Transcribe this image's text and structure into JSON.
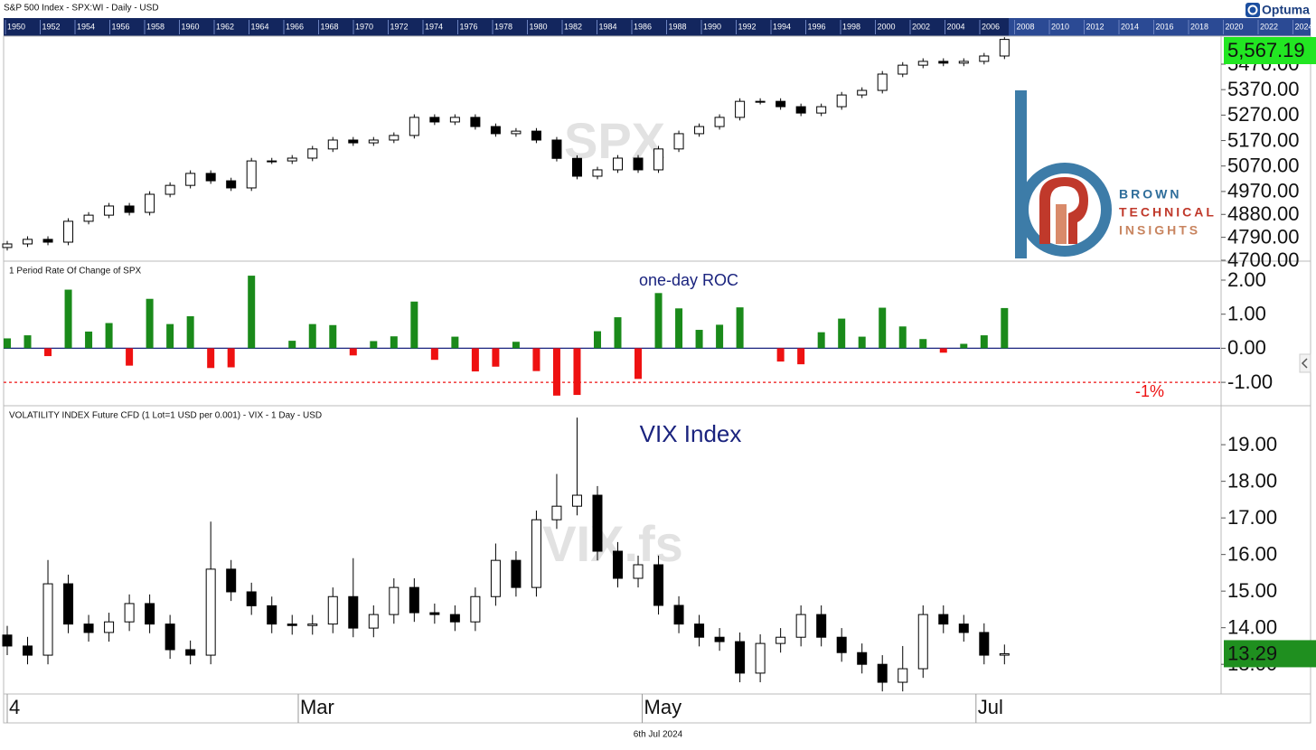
{
  "header": "S&P 500 Index - SPX:WI - Daily - USD",
  "brand": "Optuma",
  "timeline_years": [
    "1950",
    "1952",
    "1954",
    "1956",
    "1958",
    "1960",
    "1962",
    "1964",
    "1966",
    "1968",
    "1970",
    "1972",
    "1974",
    "1976",
    "1978",
    "1980",
    "1982",
    "1984",
    "1986",
    "1988",
    "1990",
    "1992",
    "1994",
    "1996",
    "1998",
    "2000",
    "2002",
    "2004",
    "2006",
    "2008",
    "2010",
    "2012",
    "2014",
    "2016",
    "2018",
    "2020",
    "2022",
    "2024"
  ],
  "x_axis": {
    "xlim": [
      0,
      59.6
    ],
    "xticks": [
      {
        "value": 0,
        "label": "4"
      },
      {
        "value": 14.3,
        "label": "Mar"
      },
      {
        "value": 31.2,
        "label": "May"
      },
      {
        "value": 47.6,
        "label": "Jul"
      }
    ]
  },
  "logo": {
    "lines": [
      "BROWN",
      "TECHNICAL",
      "INSIGHTS"
    ]
  },
  "footer": "6th Jul 2024",
  "chart_data": [
    {
      "type": "candlestick",
      "watermark": "SPX",
      "open": [
        4750,
        4764,
        4782,
        4771,
        4853,
        4877,
        4913,
        4888,
        4959,
        4994,
        5041,
        5012,
        4984,
        5090,
        5090,
        5101,
        5137,
        5172,
        5161,
        5172,
        5190,
        5261,
        5243,
        5261,
        5225,
        5197,
        5207,
        5172,
        5100,
        5030,
        5055,
        5101,
        5055,
        5137,
        5197,
        5225,
        5261,
        5324,
        5324,
        5303,
        5278,
        5303,
        5349,
        5367,
        5431,
        5466,
        5481,
        5474,
        5481,
        5502
      ],
      "high": [
        4776,
        4794,
        4794,
        4865,
        4889,
        4925,
        4925,
        4971,
        5006,
        5053,
        5053,
        5024,
        5102,
        5102,
        5113,
        5149,
        5184,
        5184,
        5184,
        5202,
        5273,
        5273,
        5273,
        5273,
        5237,
        5219,
        5219,
        5184,
        5112,
        5067,
        5113,
        5113,
        5149,
        5209,
        5237,
        5273,
        5336,
        5336,
        5336,
        5315,
        5315,
        5361,
        5379,
        5443,
        5478,
        5493,
        5493,
        5493,
        5514,
        5576
      ],
      "low": [
        4738,
        4752,
        4759,
        4759,
        4841,
        4865,
        4876,
        4876,
        4947,
        4982,
        5000,
        4972,
        4972,
        5078,
        5078,
        5089,
        5125,
        5149,
        5149,
        5160,
        5178,
        5231,
        5231,
        5213,
        5185,
        5185,
        5160,
        5088,
        5018,
        5018,
        5043,
        5043,
        5043,
        5125,
        5185,
        5213,
        5249,
        5312,
        5291,
        5266,
        5266,
        5291,
        5337,
        5355,
        5419,
        5454,
        5462,
        5462,
        5469,
        5490
      ],
      "close": [
        4764,
        4782,
        4771,
        4853,
        4877,
        4913,
        4888,
        4959,
        4994,
        5041,
        5012,
        4984,
        5090,
        5090,
        5101,
        5137,
        5172,
        5161,
        5172,
        5190,
        5261,
        5243,
        5261,
        5225,
        5197,
        5207,
        5172,
        5100,
        5030,
        5055,
        5101,
        5055,
        5137,
        5197,
        5225,
        5261,
        5324,
        5324,
        5303,
        5278,
        5303,
        5349,
        5367,
        5431,
        5466,
        5481,
        5474,
        5481,
        5502,
        5567.19
      ],
      "last_value_label": "5,567.19",
      "ylim": [
        4700,
        5580
      ],
      "yticks": [
        {
          "value": 4700,
          "label": "4700.00"
        },
        {
          "value": 4790,
          "label": "4790.00"
        },
        {
          "value": 4880,
          "label": "4880.00"
        },
        {
          "value": 4970,
          "label": "4970.00"
        },
        {
          "value": 5070,
          "label": "5070.00"
        },
        {
          "value": 5170,
          "label": "5170.00"
        },
        {
          "value": 5270,
          "label": "5270.00"
        },
        {
          "value": 5370,
          "label": "5370.00"
        },
        {
          "value": 5470,
          "label": "5470.00"
        }
      ],
      "up_color": "#ffffff",
      "down_color": "#000000",
      "label_color": "#22e622",
      "label_text_color": "#000000"
    },
    {
      "type": "bar",
      "panel_label": "1 Period Rate Of Change of SPX",
      "title": "one-day ROC",
      "values": [
        0.29,
        0.38,
        -0.23,
        1.72,
        0.49,
        0.74,
        -0.51,
        1.45,
        0.71,
        0.94,
        -0.58,
        -0.56,
        2.13,
        0.0,
        0.22,
        0.71,
        0.68,
        -0.21,
        0.21,
        0.35,
        1.37,
        -0.34,
        0.34,
        -0.68,
        -0.54,
        0.19,
        -0.67,
        -1.39,
        -1.37,
        0.5,
        0.91,
        -0.9,
        1.62,
        1.17,
        0.54,
        0.69,
        1.2,
        0.0,
        -0.39,
        -0.47,
        0.47,
        0.87,
        0.34,
        1.19,
        0.64,
        0.27,
        -0.13,
        0.13,
        0.38,
        1.18
      ],
      "ylim": [
        -1.66,
        2.53
      ],
      "yticks": [
        {
          "value": 2,
          "label": "2.00"
        },
        {
          "value": 1,
          "label": "1.00"
        },
        {
          "value": 0,
          "label": "0.00"
        },
        {
          "value": -1,
          "label": "-1.00"
        }
      ],
      "reference_line": {
        "value": -1,
        "label": "-1%"
      },
      "positive_color": "#1a8a1a",
      "negative_color": "#ee1111"
    },
    {
      "type": "candlestick",
      "panel_label": "VOLATILITY INDEX Future CFD  (1 Lot=1 USD per 0.001) - VIX - 1 Day - USD",
      "title": "VIX Index",
      "watermark": "VIX.fs",
      "open": [
        13.8,
        13.5,
        13.25,
        15.2,
        14.1,
        13.87,
        14.16,
        14.66,
        14.1,
        13.4,
        13.25,
        15.6,
        14.98,
        14.6,
        14.1,
        14.06,
        14.1,
        14.85,
        13.99,
        14.36,
        15.1,
        14.41,
        14.36,
        14.16,
        14.85,
        15.84,
        15.1,
        16.95,
        17.32,
        17.62,
        16.09,
        15.35,
        15.72,
        14.61,
        14.1,
        13.74,
        13.62,
        12.76,
        13.57,
        13.74,
        14.36,
        13.74,
        13.32,
        13.0,
        12.51,
        12.88,
        14.36,
        14.1,
        13.87,
        13.25
      ],
      "high": [
        14.05,
        13.75,
        15.85,
        15.45,
        14.35,
        14.41,
        14.91,
        14.91,
        14.35,
        13.65,
        16.9,
        15.85,
        15.23,
        14.85,
        14.35,
        14.35,
        15.1,
        15.9,
        14.61,
        15.35,
        15.35,
        14.66,
        14.61,
        15.1,
        16.3,
        16.09,
        17.2,
        18.2,
        19.74,
        17.87,
        16.34,
        15.97,
        15.97,
        14.86,
        14.35,
        13.99,
        13.87,
        13.82,
        13.99,
        14.61,
        14.61,
        13.99,
        13.57,
        13.25,
        13.5,
        14.61,
        14.61,
        14.35,
        14.12,
        13.54
      ],
      "low": [
        13.25,
        13.0,
        13.0,
        13.85,
        13.62,
        13.62,
        13.91,
        13.85,
        13.15,
        13.0,
        13.0,
        14.73,
        14.35,
        13.85,
        13.81,
        13.81,
        13.85,
        13.74,
        13.74,
        14.11,
        14.16,
        14.11,
        13.91,
        13.91,
        14.6,
        14.85,
        14.85,
        16.7,
        17.07,
        15.84,
        15.1,
        15.1,
        14.36,
        13.85,
        13.49,
        13.37,
        12.51,
        12.51,
        13.32,
        13.49,
        13.49,
        13.07,
        12.75,
        12.26,
        12.26,
        12.63,
        13.85,
        13.62,
        13.0,
        13.0
      ],
      "close": [
        13.5,
        13.25,
        15.2,
        14.1,
        13.87,
        14.16,
        14.66,
        14.1,
        13.4,
        13.25,
        15.6,
        14.98,
        14.6,
        14.1,
        14.06,
        14.1,
        14.85,
        13.99,
        14.36,
        15.1,
        14.41,
        14.36,
        14.16,
        14.85,
        15.84,
        15.1,
        16.95,
        17.32,
        17.62,
        16.09,
        15.35,
        15.72,
        14.61,
        14.1,
        13.74,
        13.62,
        12.76,
        13.57,
        13.74,
        14.36,
        13.74,
        13.32,
        13.0,
        12.51,
        12.88,
        14.36,
        14.1,
        13.87,
        13.25,
        13.29
      ],
      "ylim": [
        12.19,
        20.04
      ],
      "yticks": [
        {
          "value": 13,
          "label": "13.00"
        },
        {
          "value": 14,
          "label": "14.00"
        },
        {
          "value": 15,
          "label": "15.00"
        },
        {
          "value": 16,
          "label": "16.00"
        },
        {
          "value": 17,
          "label": "17.00"
        },
        {
          "value": 18,
          "label": "18.00"
        },
        {
          "value": 19,
          "label": "19.00"
        }
      ],
      "up_color": "#ffffff",
      "down_color": "#000000",
      "label_color": "#1f8f1f",
      "label_text_color": "#ffffff"
    }
  ]
}
